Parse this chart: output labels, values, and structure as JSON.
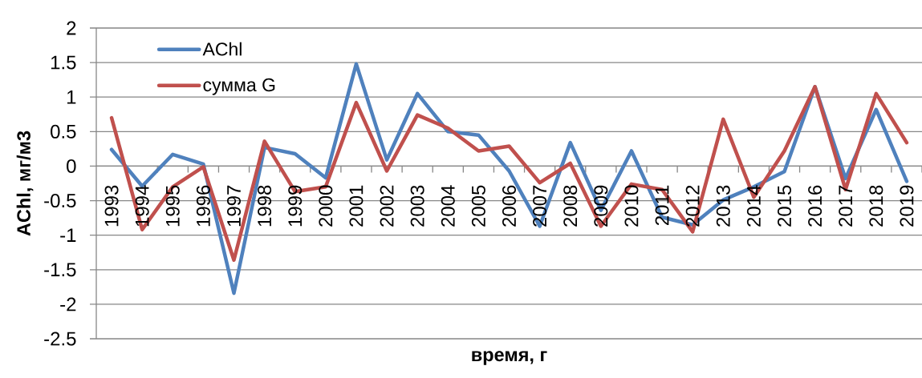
{
  "chart_data": {
    "type": "line",
    "xlabel": "время, г",
    "ylabel": "AChl, мг/м3",
    "categories": [
      "1993",
      "1994",
      "1995",
      "1996",
      "1997",
      "1998",
      "1999",
      "2000",
      "2001",
      "2002",
      "2003",
      "2004",
      "2005",
      "2006",
      "2007",
      "2008",
      "2009",
      "2010",
      "2011",
      "2012",
      "2013",
      "2014",
      "2015",
      "2016",
      "2017",
      "2018",
      "2019"
    ],
    "series": [
      {
        "name": "AChl",
        "color": "#4f81bd",
        "values": [
          0.24,
          -0.29,
          0.17,
          0.03,
          -1.84,
          0.27,
          0.18,
          -0.17,
          1.48,
          0.09,
          1.05,
          0.5,
          0.45,
          -0.07,
          -0.87,
          0.34,
          -0.64,
          0.22,
          -0.74,
          -0.85,
          -0.49,
          -0.3,
          -0.08,
          1.15,
          -0.18,
          0.82,
          -0.22
        ]
      },
      {
        "name": "сумма G",
        "color": "#c0504d",
        "values": [
          0.7,
          -0.92,
          -0.3,
          -0.01,
          -1.36,
          0.36,
          -0.37,
          -0.3,
          0.92,
          -0.07,
          0.74,
          0.55,
          0.22,
          0.29,
          -0.24,
          0.04,
          -0.87,
          -0.26,
          -0.34,
          -0.95,
          0.68,
          -0.45,
          0.22,
          1.15,
          -0.34,
          1.05,
          0.34
        ]
      }
    ],
    "ylim": [
      -2.5,
      2
    ],
    "yticks": [
      -2.5,
      -2,
      -1.5,
      -1,
      -0.5,
      0,
      0.5,
      1,
      1.5,
      2
    ],
    "grid": "y",
    "legend": "top left",
    "line_style": "solid"
  }
}
